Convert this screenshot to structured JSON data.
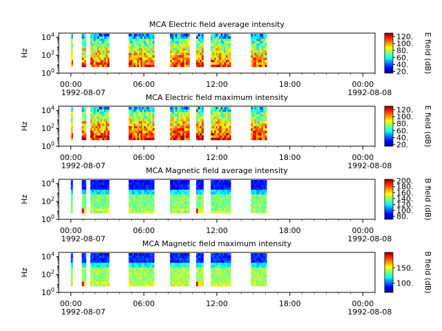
{
  "chart_data": [
    {
      "type": "heatmap",
      "title": "MCA  Electric field average intensity",
      "ylabel": "Hz",
      "y_tick_labels": [
        "10",
        "10",
        "10"
      ],
      "y_tick_exponents": [
        "0",
        "2",
        "4"
      ],
      "y_scale": "log",
      "ylim": [
        1,
        30000
      ],
      "x_tick_labels": [
        "00:00",
        "06:00",
        "12:00",
        "18:00",
        "00:00"
      ],
      "x_date_left": "1992-08-07",
      "x_date_right": "1992-08-08",
      "colorbar_label": "E field (dB)",
      "colorbar_ticks": [
        "20.",
        "40.",
        "60.",
        "80.",
        "100.",
        "120."
      ],
      "colorbar_range": [
        15,
        130
      ],
      "data_blocks_hours": [
        [
          0.0,
          0.15
        ],
        [
          0.9,
          1.25
        ],
        [
          1.6,
          3.15
        ],
        [
          4.75,
          6.85
        ],
        [
          8.15,
          9.75
        ],
        [
          10.3,
          10.9
        ],
        [
          11.5,
          13.15
        ],
        [
          14.8,
          16.1
        ]
      ]
    },
    {
      "type": "heatmap",
      "title": "MCA  Electric field maximum intensity",
      "ylabel": "Hz",
      "y_tick_labels": [
        "10",
        "10",
        "10"
      ],
      "y_tick_exponents": [
        "0",
        "2",
        "4"
      ],
      "y_scale": "log",
      "ylim": [
        1,
        30000
      ],
      "x_tick_labels": [
        "00:00",
        "06:00",
        "12:00",
        "18:00",
        "00:00"
      ],
      "x_date_left": "1992-08-07",
      "x_date_right": "1992-08-08",
      "colorbar_label": "E field (dB)",
      "colorbar_ticks": [
        "20.",
        "40.",
        "60.",
        "80.",
        "100.",
        "120."
      ],
      "colorbar_range": [
        15,
        130
      ],
      "data_blocks_hours": [
        [
          0.0,
          0.15
        ],
        [
          0.9,
          1.25
        ],
        [
          1.6,
          3.15
        ],
        [
          4.75,
          6.85
        ],
        [
          8.15,
          9.75
        ],
        [
          10.3,
          10.9
        ],
        [
          11.5,
          13.15
        ],
        [
          14.8,
          16.1
        ]
      ]
    },
    {
      "type": "heatmap",
      "title": "MCA  Magnetic field average intensity",
      "ylabel": "Hz",
      "y_tick_labels": [
        "10",
        "10",
        "10"
      ],
      "y_tick_exponents": [
        "0",
        "2",
        "4"
      ],
      "y_scale": "log",
      "ylim": [
        1,
        30000
      ],
      "x_tick_labels": [
        "00:00",
        "06:00",
        "12:00",
        "18:00",
        "00:00"
      ],
      "x_date_left": "1992-08-07",
      "x_date_right": "1992-08-08",
      "colorbar_label": "B field (dB)",
      "colorbar_ticks": [
        "80.",
        "100.",
        "120.",
        "140.",
        "160.",
        "180.",
        "200."
      ],
      "colorbar_range": [
        70,
        205
      ],
      "data_blocks_hours": [
        [
          0.0,
          0.15
        ],
        [
          0.9,
          1.25
        ],
        [
          1.6,
          3.15
        ],
        [
          4.75,
          6.85
        ],
        [
          8.15,
          9.75
        ],
        [
          10.3,
          10.9
        ],
        [
          11.5,
          13.15
        ],
        [
          14.8,
          16.1
        ]
      ]
    },
    {
      "type": "heatmap",
      "title": "MCA  Magnetic field maximum intensity",
      "ylabel": "Hz",
      "y_tick_labels": [
        "10",
        "10",
        "10"
      ],
      "y_tick_exponents": [
        "0",
        "2",
        "4"
      ],
      "y_scale": "log",
      "ylim": [
        1,
        30000
      ],
      "x_tick_labels": [
        "00:00",
        "06:00",
        "12:00",
        "18:00",
        "00:00"
      ],
      "x_date_left": "1992-08-07",
      "x_date_right": "1992-08-08",
      "colorbar_label": "B field (dB)",
      "colorbar_ticks": [
        "100.",
        "150."
      ],
      "colorbar_range": [
        70,
        200
      ],
      "data_blocks_hours": [
        [
          0.0,
          0.15
        ],
        [
          0.9,
          1.25
        ],
        [
          1.6,
          3.15
        ],
        [
          4.75,
          6.85
        ],
        [
          8.15,
          9.75
        ],
        [
          10.3,
          10.9
        ],
        [
          11.5,
          13.15
        ],
        [
          14.8,
          16.1
        ]
      ]
    }
  ]
}
